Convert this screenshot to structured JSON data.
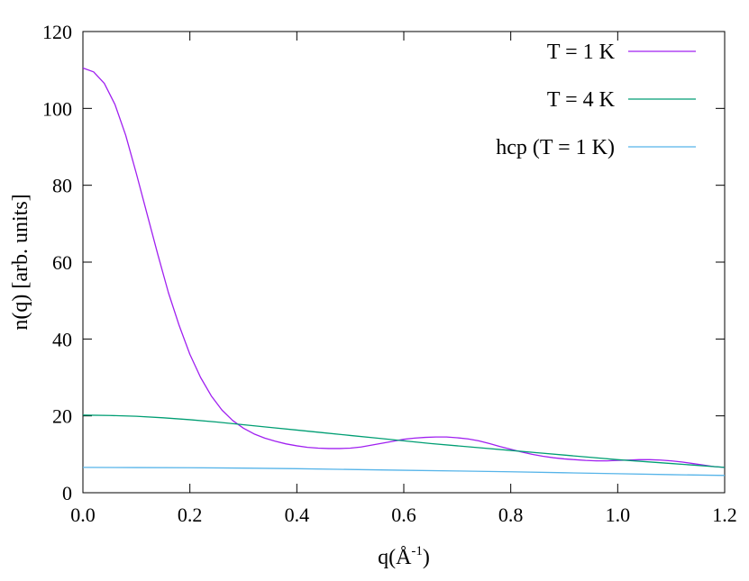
{
  "chart_data": {
    "type": "line",
    "xlabel": "q(Å",
    "xlabel_sup": "-1",
    "xlabel_close": ")",
    "ylabel": "n(q) [arb. units]",
    "xlim": [
      0.0,
      1.2
    ],
    "ylim": [
      0,
      120
    ],
    "xticks": [
      "0.0",
      "0.2",
      "0.4",
      "0.6",
      "0.8",
      "1.0",
      "1.2"
    ],
    "xtick_values": [
      0.0,
      0.2,
      0.4,
      0.6,
      0.8,
      1.0,
      1.2
    ],
    "yticks": [
      "0",
      "20",
      "40",
      "60",
      "80",
      "100",
      "120"
    ],
    "ytick_values": [
      0,
      20,
      40,
      60,
      80,
      100,
      120
    ],
    "grid": false,
    "legend_position": "top-right",
    "series": [
      {
        "name": "T = 1 K",
        "color": "#a020f0",
        "x": [
          0.0,
          0.02,
          0.04,
          0.06,
          0.08,
          0.1,
          0.12,
          0.14,
          0.16,
          0.18,
          0.2,
          0.22,
          0.24,
          0.26,
          0.28,
          0.3,
          0.32,
          0.34,
          0.36,
          0.38,
          0.4,
          0.42,
          0.44,
          0.46,
          0.48,
          0.5,
          0.52,
          0.54,
          0.56,
          0.58,
          0.6,
          0.62,
          0.64,
          0.66,
          0.68,
          0.7,
          0.72,
          0.74,
          0.76,
          0.78,
          0.8,
          0.82,
          0.84,
          0.86,
          0.88,
          0.9,
          0.92,
          0.94,
          0.96,
          0.98,
          1.0,
          1.02,
          1.04,
          1.06,
          1.08,
          1.1,
          1.12,
          1.14,
          1.16,
          1.18,
          1.2
        ],
        "y": [
          110.5,
          109.5,
          106.5,
          101,
          93,
          83,
          72.5,
          62,
          52,
          43.5,
          36,
          30,
          25.2,
          21.5,
          18.8,
          16.8,
          15.3,
          14.2,
          13.4,
          12.7,
          12.2,
          11.8,
          11.6,
          11.5,
          11.5,
          11.6,
          11.9,
          12.4,
          12.9,
          13.4,
          13.9,
          14.2,
          14.4,
          14.5,
          14.5,
          14.3,
          14.0,
          13.5,
          12.8,
          12.0,
          11.3,
          10.6,
          10.0,
          9.5,
          9.1,
          8.8,
          8.6,
          8.4,
          8.3,
          8.3,
          8.4,
          8.5,
          8.6,
          8.6,
          8.5,
          8.3,
          8.0,
          7.6,
          7.2,
          6.8,
          6.6
        ]
      },
      {
        "name": "T = 4 K",
        "color": "#009e73",
        "x": [
          0.0,
          0.05,
          0.1,
          0.15,
          0.2,
          0.25,
          0.3,
          0.35,
          0.4,
          0.45,
          0.5,
          0.55,
          0.6,
          0.65,
          0.7,
          0.75,
          0.8,
          0.85,
          0.9,
          0.95,
          1.0,
          1.05,
          1.1,
          1.15,
          1.2
        ],
        "y": [
          20.2,
          20.1,
          19.9,
          19.5,
          19.0,
          18.4,
          17.7,
          17.0,
          16.3,
          15.6,
          14.9,
          14.2,
          13.5,
          12.8,
          12.2,
          11.6,
          11.0,
          10.4,
          9.8,
          9.2,
          8.6,
          8.1,
          7.6,
          7.1,
          6.6
        ]
      },
      {
        "name": "hcp (T = 1 K)",
        "color": "#56b4e9",
        "x": [
          0.0,
          0.1,
          0.2,
          0.3,
          0.4,
          0.5,
          0.6,
          0.7,
          0.8,
          0.9,
          1.0,
          1.1,
          1.2
        ],
        "y": [
          6.6,
          6.55,
          6.5,
          6.4,
          6.25,
          6.05,
          5.85,
          5.65,
          5.45,
          5.2,
          4.95,
          4.7,
          4.5
        ]
      }
    ]
  }
}
